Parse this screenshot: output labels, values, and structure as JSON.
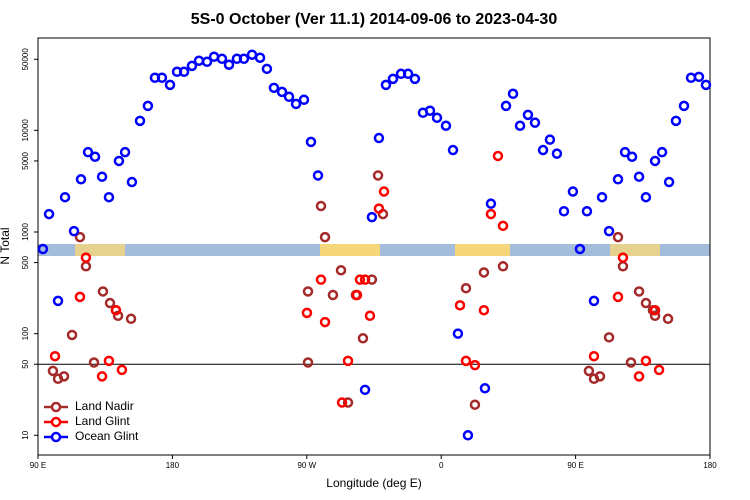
{
  "chart_data": {
    "type": "scatter",
    "title": "5S-0 October (Ver 11.1)   2014-09-06 to 2023-04-30",
    "x_label": "Longitude (deg E)",
    "y_label": "N Total",
    "log_y": true,
    "legend": "lower left",
    "hline": 50,
    "xlim": [
      90,
      540
    ],
    "xticks": [
      {
        "value": 90,
        "label": "90 E"
      },
      180,
      {
        "value": 270,
        "label": "90 W"
      },
      {
        "value": 360,
        "label": "0"
      },
      {
        "value": 450,
        "label": "90 E"
      },
      {
        "value": 540,
        "label": "180"
      }
    ],
    "ylim": [
      6.4,
      81000
    ],
    "yticks": [
      10,
      50,
      100,
      500,
      1000,
      5000,
      10000,
      50000
    ],
    "series": [
      {
        "name": "Land Nadir",
        "color": "#a52a2a",
        "x": [
          118.1,
          122.1,
          100,
          103.4,
          107.4,
          112.8,
          127.5,
          133.5,
          138.2,
          142.2,
          143.6,
          152.3,
          270.8,
          270.8,
          279.5,
          282.2,
          287.5,
          292.9,
          297.6,
          302.9,
          307.6,
          313.6,
          317.7,
          321,
          376.6,
          382.6,
          388.6,
          401.4,
          472.4,
          478.4,
          481.7,
          458.9,
          462.3,
          466.3,
          487.1,
          492.5,
          497.1,
          501.8,
          503.2,
          511.9
        ],
        "values": [
          890,
          460,
          43,
          36,
          38,
          97,
          52,
          260,
          200,
          170,
          150,
          140,
          260,
          52,
          1800,
          890,
          240,
          420,
          21,
          240,
          90,
          340,
          3600,
          1500,
          280,
          20,
          400,
          460,
          92,
          890,
          460,
          43,
          36,
          38,
          52,
          260,
          200,
          170,
          150,
          140
        ]
      },
      {
        "name": "Land Glint",
        "color": "#ff0000",
        "x": [
          101.4,
          118.1,
          122.1,
          132.9,
          137.5,
          142.2,
          146.2,
          270.1,
          279.5,
          282.2,
          297.6,
          293.6,
          303.6,
          305.6,
          309,
          312.3,
          318.3,
          321.7,
          372.6,
          376.6,
          382.6,
          388.6,
          393.3,
          398,
          401.4,
          462.3,
          478.4,
          481.7,
          492.5,
          497.1,
          503.2,
          505.9
        ],
        "values": [
          60,
          230,
          560,
          38,
          54,
          170,
          44,
          160,
          340,
          130,
          54,
          21,
          240,
          340,
          340,
          150,
          1700,
          2500,
          190,
          54,
          49,
          170,
          1500,
          5600,
          1150,
          60,
          230,
          560,
          38,
          54,
          170,
          44
        ]
      },
      {
        "name": "Ocean Glint",
        "color": "#0000ff",
        "x": [
          93.3,
          97.4,
          103.4,
          108.1,
          114.1,
          118.8,
          123.5,
          128.2,
          132.9,
          137.5,
          144.2,
          148.3,
          152.9,
          158.3,
          163.6,
          168.3,
          173,
          178.4,
          183.1,
          187.8,
          193.1,
          197.8,
          203.2,
          207.9,
          213.2,
          217.9,
          223.2,
          227.9,
          233.3,
          238.7,
          243.3,
          248,
          253.4,
          258.1,
          262.8,
          268.1,
          272.8,
          277.5,
          309,
          313.6,
          318.3,
          323,
          327.7,
          333.1,
          337.8,
          342.4,
          347.8,
          352.5,
          357.2,
          363.2,
          367.9,
          371.2,
          377.9,
          389.3,
          393.3,
          403.4,
          408.1,
          412.8,
          418.1,
          422.8,
          428.2,
          432.8,
          437.5,
          442.2,
          448.2,
          452.9,
          457.6,
          462.3,
          467.7,
          472.4,
          478.4,
          483.1,
          487.8,
          492.5,
          497.1,
          503.2,
          507.9,
          512.6,
          517.2,
          522.6,
          527.3,
          532.6,
          537.3
        ],
        "values": [
          680,
          1500,
          210,
          2200,
          1020,
          3300,
          6100,
          5500,
          3500,
          2200,
          5000,
          6100,
          3100,
          12400,
          17400,
          32900,
          32900,
          28000,
          37700,
          37700,
          43100,
          48400,
          47300,
          53000,
          50600,
          44200,
          50600,
          50600,
          55500,
          51800,
          40300,
          26200,
          23900,
          21400,
          18200,
          20000,
          7700,
          3600,
          28,
          1400,
          8400,
          28000,
          32100,
          36000,
          36000,
          32100,
          14900,
          15600,
          13300,
          11100,
          6400,
          100,
          10,
          29,
          1900,
          17400,
          22900,
          11100,
          14200,
          11900,
          6400,
          8100,
          5900,
          1600,
          2500,
          680,
          1600,
          210,
          2200,
          1020,
          3300,
          6100,
          5500,
          3500,
          2200,
          5000,
          6100,
          3100,
          12400,
          17400,
          32900,
          33600,
          28000
        ]
      }
    ]
  }
}
